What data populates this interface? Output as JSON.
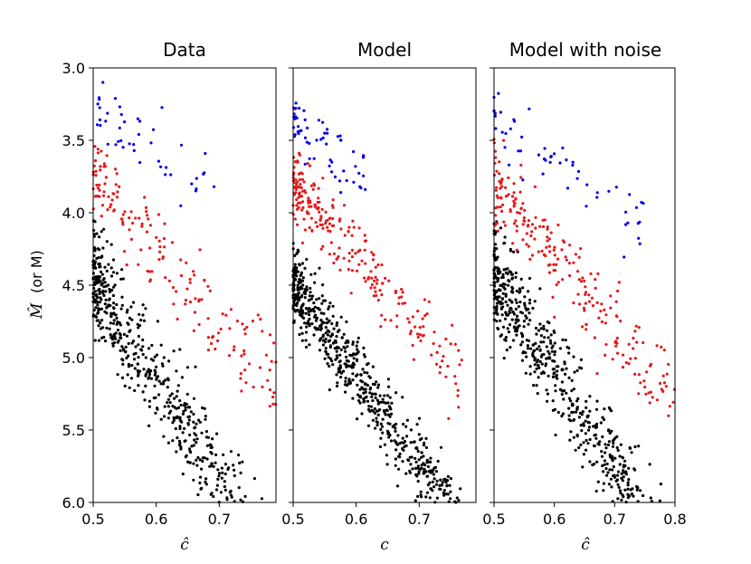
{
  "figure": {
    "ylabel_symbol": "M̂",
    "ylabel_suffix": "(or M)",
    "y_range": [
      3.0,
      6.0
    ],
    "y_ticks": [
      "3.0",
      "3.5",
      "4.0",
      "4.5",
      "5.0",
      "5.5",
      "6.0"
    ],
    "colors": {
      "low": "#000000",
      "mid": "#e41a1c",
      "high": "#0000ee",
      "mixed": "#7a1f8c",
      "dark_red": "#8b1a1a"
    }
  },
  "chart_data": [
    {
      "type": "scatter",
      "title": "Data",
      "xlabel": "ĉ",
      "xlim": [
        0.5,
        0.79
      ],
      "ylim": [
        6.0,
        3.0
      ],
      "x_ticks": [
        "0.5",
        "0.6",
        "0.7"
      ],
      "series": [
        {
          "name": "black",
          "color": "#000000",
          "n": 600,
          "slope": 7.0,
          "intercept": 4.45,
          "sd": 0.18,
          "xmin": 0.5,
          "xmax": 0.79
        },
        {
          "name": "red",
          "color": "#e41a1c",
          "n": 170,
          "slope": 5.0,
          "intercept": 3.75,
          "sd": 0.16,
          "xmin": 0.5,
          "xmax": 0.79
        },
        {
          "name": "blue",
          "color": "#0000ee",
          "n": 45,
          "slope": 3.0,
          "intercept": 3.3,
          "sd": 0.14,
          "xmin": 0.5,
          "xmax": 0.7
        }
      ]
    },
    {
      "type": "scatter",
      "title": "Model",
      "xlabel": "c",
      "xlim": [
        0.5,
        0.79
      ],
      "ylim": [
        6.0,
        3.0
      ],
      "x_ticks": [
        "0.5",
        "0.6",
        "0.7"
      ],
      "series": [
        {
          "name": "black",
          "color": "#000000",
          "n": 700,
          "slope": 6.2,
          "intercept": 4.5,
          "sd": 0.13,
          "xmin": 0.5,
          "xmax": 0.79
        },
        {
          "name": "red",
          "color": "#e41a1c",
          "n": 250,
          "slope": 5.0,
          "intercept": 3.8,
          "sd": 0.12,
          "xmin": 0.5,
          "xmax": 0.77
        },
        {
          "name": "blue",
          "color": "#0000ee",
          "n": 60,
          "slope": 3.5,
          "intercept": 3.35,
          "sd": 0.1,
          "xmin": 0.5,
          "xmax": 0.63
        }
      ]
    },
    {
      "type": "scatter",
      "title": "Model with noise",
      "xlabel": "ĉ",
      "xlim": [
        0.5,
        0.8
      ],
      "ylim": [
        6.0,
        3.0
      ],
      "x_ticks": [
        "0.5",
        "0.6",
        "0.7",
        "0.8"
      ],
      "series": [
        {
          "name": "black",
          "color": "#000000",
          "n": 650,
          "slope": 6.5,
          "intercept": 4.45,
          "sd": 0.17,
          "xmin": 0.5,
          "xmax": 0.8
        },
        {
          "name": "red",
          "color": "#e41a1c",
          "n": 230,
          "slope": 5.0,
          "intercept": 3.8,
          "sd": 0.15,
          "xmin": 0.5,
          "xmax": 0.8
        },
        {
          "name": "blue",
          "color": "#0000ee",
          "n": 55,
          "slope": 3.0,
          "intercept": 3.35,
          "sd": 0.13,
          "xmin": 0.5,
          "xmax": 0.75
        }
      ]
    }
  ]
}
